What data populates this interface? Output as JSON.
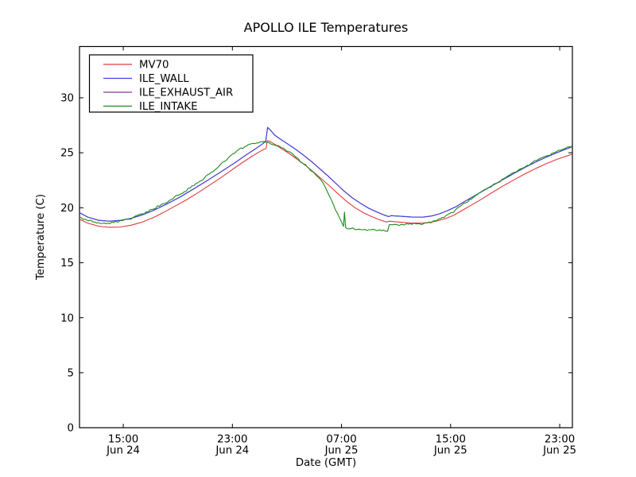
{
  "chart_data": {
    "type": "line",
    "title": "APOLLO ILE Temperatures",
    "xlabel": "Date (GMT)",
    "ylabel": "Temperature (C)",
    "x_unit": "hours since Jun 24 00:00 GMT",
    "xlim": [
      11.79,
      47.93
    ],
    "ylim": [
      0,
      34.66
    ],
    "grid": false,
    "legend_position": "upper left",
    "x_ticks": [
      {
        "t": 15,
        "time": "15:00",
        "date": "Jun 24"
      },
      {
        "t": 23,
        "time": "23:00",
        "date": "Jun 24"
      },
      {
        "t": 31,
        "time": "07:00",
        "date": "Jun 25"
      },
      {
        "t": 39,
        "time": "15:00",
        "date": "Jun 25"
      },
      {
        "t": 47,
        "time": "23:00",
        "date": "Jun 25"
      }
    ],
    "y_ticks": [
      0,
      5,
      10,
      15,
      20,
      25,
      30
    ],
    "draw_order": [
      "ILE_EXHAUST_AIR",
      "MV70",
      "ILE_WALL",
      "ILE_INTAKE"
    ],
    "series": [
      {
        "name": "MV70",
        "color": "#e13b3b",
        "noise": 0,
        "points": [
          [
            11.79,
            18.95
          ],
          [
            12.4,
            18.6
          ],
          [
            13.2,
            18.32
          ],
          [
            14.0,
            18.22
          ],
          [
            14.8,
            18.25
          ],
          [
            15.6,
            18.42
          ],
          [
            16.4,
            18.7
          ],
          [
            17.2,
            19.1
          ],
          [
            18.0,
            19.6
          ],
          [
            18.8,
            20.15
          ],
          [
            19.6,
            20.7
          ],
          [
            20.4,
            21.3
          ],
          [
            21.2,
            21.95
          ],
          [
            22.0,
            22.6
          ],
          [
            22.8,
            23.3
          ],
          [
            23.6,
            24.0
          ],
          [
            24.4,
            24.65
          ],
          [
            25.0,
            25.1
          ],
          [
            25.3,
            25.3
          ],
          [
            25.48,
            25.42
          ],
          [
            25.55,
            26.1
          ],
          [
            25.8,
            26.0
          ],
          [
            26.2,
            25.7
          ],
          [
            26.7,
            25.3
          ],
          [
            27.2,
            24.9
          ],
          [
            27.8,
            24.35
          ],
          [
            28.4,
            23.8
          ],
          [
            29.0,
            23.2
          ],
          [
            29.6,
            22.55
          ],
          [
            30.2,
            21.9
          ],
          [
            30.8,
            21.2
          ],
          [
            31.4,
            20.55
          ],
          [
            32.0,
            20.0
          ],
          [
            32.6,
            19.55
          ],
          [
            33.2,
            19.2
          ],
          [
            33.8,
            18.9
          ],
          [
            34.3,
            18.7
          ],
          [
            34.5,
            18.78
          ],
          [
            35.2,
            18.7
          ],
          [
            36.0,
            18.62
          ],
          [
            36.8,
            18.6
          ],
          [
            37.4,
            18.65
          ],
          [
            38.0,
            18.8
          ],
          [
            38.6,
            19.0
          ],
          [
            39.2,
            19.3
          ],
          [
            39.9,
            19.8
          ],
          [
            40.6,
            20.3
          ],
          [
            41.3,
            20.8
          ],
          [
            42.0,
            21.35
          ],
          [
            42.8,
            21.95
          ],
          [
            43.6,
            22.5
          ],
          [
            44.4,
            23.05
          ],
          [
            45.2,
            23.55
          ],
          [
            46.0,
            24.0
          ],
          [
            46.8,
            24.4
          ],
          [
            47.5,
            24.7
          ],
          [
            47.93,
            24.88
          ]
        ]
      },
      {
        "name": "ILE_WALL",
        "color": "#4040d9",
        "noise": 0,
        "points": [
          [
            11.79,
            19.55
          ],
          [
            12.4,
            19.15
          ],
          [
            13.2,
            18.85
          ],
          [
            14.0,
            18.78
          ],
          [
            14.8,
            18.85
          ],
          [
            15.6,
            19.05
          ],
          [
            16.4,
            19.35
          ],
          [
            17.2,
            19.75
          ],
          [
            18.2,
            20.35
          ],
          [
            19.2,
            21.0
          ],
          [
            20.2,
            21.75
          ],
          [
            21.2,
            22.5
          ],
          [
            22.2,
            23.3
          ],
          [
            23.2,
            24.1
          ],
          [
            24.0,
            24.8
          ],
          [
            24.8,
            25.45
          ],
          [
            25.2,
            25.8
          ],
          [
            25.45,
            26.05
          ],
          [
            25.58,
            27.3
          ],
          [
            25.8,
            27.05
          ],
          [
            26.1,
            26.6
          ],
          [
            26.5,
            26.25
          ],
          [
            27.0,
            25.85
          ],
          [
            27.6,
            25.35
          ],
          [
            28.2,
            24.8
          ],
          [
            28.8,
            24.2
          ],
          [
            29.4,
            23.55
          ],
          [
            30.0,
            22.9
          ],
          [
            30.6,
            22.2
          ],
          [
            31.2,
            21.5
          ],
          [
            31.8,
            20.9
          ],
          [
            32.4,
            20.4
          ],
          [
            33.0,
            19.95
          ],
          [
            33.6,
            19.6
          ],
          [
            34.1,
            19.35
          ],
          [
            34.45,
            19.2
          ],
          [
            34.65,
            19.28
          ],
          [
            35.4,
            19.22
          ],
          [
            36.2,
            19.15
          ],
          [
            37.0,
            19.15
          ],
          [
            37.6,
            19.25
          ],
          [
            38.2,
            19.45
          ],
          [
            38.8,
            19.75
          ],
          [
            39.4,
            20.1
          ],
          [
            40.0,
            20.55
          ],
          [
            40.7,
            21.05
          ],
          [
            41.4,
            21.55
          ],
          [
            42.1,
            22.05
          ],
          [
            42.9,
            22.6
          ],
          [
            43.7,
            23.15
          ],
          [
            44.5,
            23.7
          ],
          [
            45.3,
            24.2
          ],
          [
            46.1,
            24.65
          ],
          [
            46.9,
            25.05
          ],
          [
            47.5,
            25.35
          ],
          [
            47.93,
            25.55
          ]
        ]
      },
      {
        "name": "ILE_EXHAUST_AIR",
        "color": "#8636a8",
        "noise": 0,
        "note": "coincides with ILE_WALL curve (hidden beneath it in the plot)",
        "points": [
          [
            11.79,
            19.55
          ],
          [
            12.4,
            19.15
          ],
          [
            13.2,
            18.85
          ],
          [
            14.0,
            18.78
          ],
          [
            14.8,
            18.85
          ],
          [
            15.6,
            19.05
          ],
          [
            16.4,
            19.35
          ],
          [
            17.2,
            19.75
          ],
          [
            18.2,
            20.35
          ],
          [
            19.2,
            21.0
          ],
          [
            20.2,
            21.75
          ],
          [
            21.2,
            22.5
          ],
          [
            22.2,
            23.3
          ],
          [
            23.2,
            24.1
          ],
          [
            24.0,
            24.8
          ],
          [
            24.8,
            25.45
          ],
          [
            25.2,
            25.8
          ],
          [
            25.45,
            26.05
          ],
          [
            25.58,
            27.3
          ],
          [
            25.8,
            27.05
          ],
          [
            26.1,
            26.6
          ],
          [
            26.5,
            26.25
          ],
          [
            27.0,
            25.85
          ],
          [
            27.6,
            25.35
          ],
          [
            28.2,
            24.8
          ],
          [
            28.8,
            24.2
          ],
          [
            29.4,
            23.55
          ],
          [
            30.0,
            22.9
          ],
          [
            30.6,
            22.2
          ],
          [
            31.2,
            21.5
          ],
          [
            31.8,
            20.9
          ],
          [
            32.4,
            20.4
          ],
          [
            33.0,
            19.95
          ],
          [
            33.6,
            19.6
          ],
          [
            34.1,
            19.35
          ],
          [
            34.45,
            19.2
          ],
          [
            34.65,
            19.28
          ],
          [
            35.4,
            19.22
          ],
          [
            36.2,
            19.15
          ],
          [
            37.0,
            19.15
          ],
          [
            37.6,
            19.25
          ],
          [
            38.2,
            19.45
          ],
          [
            38.8,
            19.75
          ],
          [
            39.4,
            20.1
          ],
          [
            40.0,
            20.55
          ],
          [
            40.7,
            21.05
          ],
          [
            41.4,
            21.55
          ],
          [
            42.1,
            22.05
          ],
          [
            42.9,
            22.6
          ],
          [
            43.7,
            23.15
          ],
          [
            44.5,
            23.7
          ],
          [
            45.3,
            24.2
          ],
          [
            46.1,
            24.65
          ],
          [
            46.9,
            25.05
          ],
          [
            47.5,
            25.35
          ],
          [
            47.93,
            25.55
          ]
        ]
      },
      {
        "name": "ILE_INTAKE",
        "color": "#1d8a1d",
        "noise": 0.09,
        "points": [
          [
            11.79,
            19.15
          ],
          [
            12.3,
            18.9
          ],
          [
            12.9,
            18.72
          ],
          [
            13.6,
            18.6
          ],
          [
            14.3,
            18.65
          ],
          [
            15.0,
            18.85
          ],
          [
            15.7,
            19.1
          ],
          [
            16.4,
            19.45
          ],
          [
            17.1,
            19.85
          ],
          [
            17.8,
            20.3
          ],
          [
            18.5,
            20.75
          ],
          [
            19.2,
            21.25
          ],
          [
            19.9,
            21.8
          ],
          [
            20.6,
            22.4
          ],
          [
            21.3,
            23.05
          ],
          [
            22.0,
            23.75
          ],
          [
            22.7,
            24.55
          ],
          [
            23.3,
            25.15
          ],
          [
            23.9,
            25.55
          ],
          [
            24.5,
            25.85
          ],
          [
            25.1,
            26.0
          ],
          [
            25.6,
            25.95
          ],
          [
            26.1,
            25.7
          ],
          [
            26.6,
            25.45
          ],
          [
            27.1,
            25.1
          ],
          [
            27.6,
            24.65
          ],
          [
            28.1,
            24.1
          ],
          [
            28.6,
            23.6
          ],
          [
            29.1,
            23.0
          ],
          [
            29.5,
            22.5
          ],
          [
            29.8,
            21.9
          ],
          [
            30.1,
            21.1
          ],
          [
            30.4,
            20.3
          ],
          [
            30.7,
            19.5
          ],
          [
            31.0,
            18.7
          ],
          [
            31.15,
            18.3
          ],
          [
            31.22,
            19.6
          ],
          [
            31.3,
            18.2
          ],
          [
            31.7,
            18.1
          ],
          [
            32.3,
            18.05
          ],
          [
            33.0,
            18.0
          ],
          [
            33.7,
            17.95
          ],
          [
            34.2,
            17.88
          ],
          [
            34.38,
            17.85
          ],
          [
            34.5,
            18.45
          ],
          [
            35.1,
            18.45
          ],
          [
            35.9,
            18.5
          ],
          [
            36.7,
            18.55
          ],
          [
            37.3,
            18.62
          ],
          [
            37.9,
            18.8
          ],
          [
            38.5,
            19.1
          ],
          [
            39.1,
            19.55
          ],
          [
            39.7,
            20.1
          ],
          [
            40.4,
            20.75
          ],
          [
            41.1,
            21.35
          ],
          [
            41.8,
            21.85
          ],
          [
            42.5,
            22.3
          ],
          [
            43.2,
            22.9
          ],
          [
            43.9,
            23.35
          ],
          [
            44.6,
            23.85
          ],
          [
            45.3,
            24.3
          ],
          [
            46.0,
            24.7
          ],
          [
            46.7,
            25.05
          ],
          [
            47.3,
            25.35
          ],
          [
            47.93,
            25.65
          ]
        ]
      }
    ]
  }
}
